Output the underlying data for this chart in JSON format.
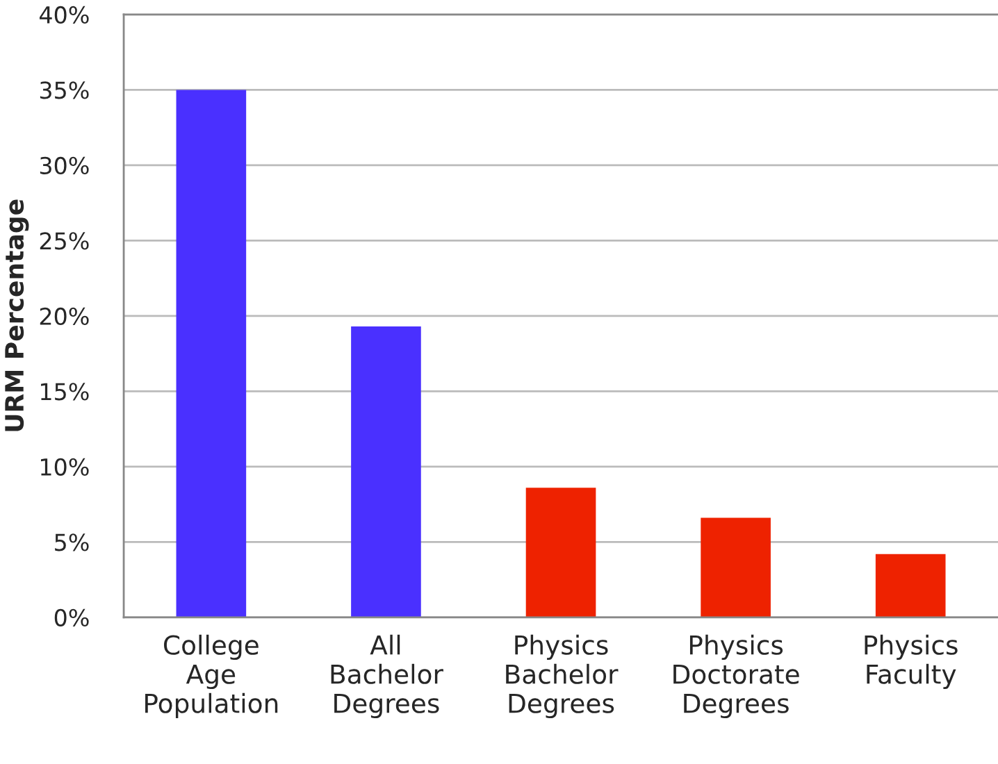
{
  "chart_data": {
    "type": "bar",
    "ylabel": "URM Percentage",
    "categories": [
      "College\nAge\nPopulation",
      "All\nBachelor\nDegrees",
      "Physics\nBachelor\nDegrees",
      "Physics\nDoctorate\nDegrees",
      "Physics\nFaculty"
    ],
    "values": [
      35,
      19.3,
      8.6,
      6.6,
      4.2
    ],
    "colors": [
      "#4a30ff",
      "#4a30ff",
      "#ee2200",
      "#ee2200",
      "#ee2200"
    ],
    "ylim": [
      0,
      40
    ],
    "yticks": [
      {
        "value": 0,
        "label": "0%"
      },
      {
        "value": 5,
        "label": "5%"
      },
      {
        "value": 10,
        "label": "10%"
      },
      {
        "value": 15,
        "label": "15%"
      },
      {
        "value": 20,
        "label": "20%"
      },
      {
        "value": 25,
        "label": "25%"
      },
      {
        "value": 30,
        "label": "30%"
      },
      {
        "value": 35,
        "label": "35%"
      },
      {
        "value": 40,
        "label": "40%"
      }
    ],
    "grid": "y",
    "legend": false
  }
}
